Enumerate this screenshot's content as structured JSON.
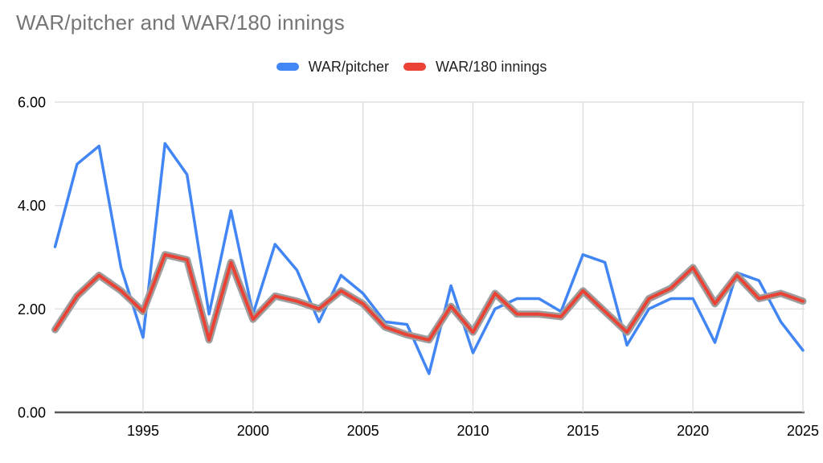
{
  "chart_data": {
    "type": "line",
    "title": "WAR/pitcher and WAR/180 innings",
    "xlabel": "",
    "ylabel": "",
    "x": [
      1991,
      1992,
      1993,
      1994,
      1995,
      1996,
      1997,
      1998,
      1999,
      2000,
      2001,
      2002,
      2003,
      2004,
      2005,
      2006,
      2007,
      2008,
      2009,
      2010,
      2011,
      2012,
      2013,
      2014,
      2015,
      2016,
      2017,
      2018,
      2019,
      2020,
      2021,
      2022,
      2023,
      2024,
      2025
    ],
    "series": [
      {
        "name": "WAR/pitcher",
        "color": "#4285F4",
        "values": [
          3.2,
          4.8,
          5.15,
          2.8,
          1.45,
          5.2,
          4.6,
          1.9,
          3.9,
          1.9,
          3.25,
          2.75,
          1.75,
          2.65,
          2.3,
          1.75,
          1.7,
          0.75,
          2.45,
          1.15,
          2.0,
          2.2,
          2.2,
          1.95,
          3.05,
          2.9,
          1.3,
          2.0,
          2.2,
          2.2,
          1.35,
          2.7,
          2.55,
          1.75,
          1.2
        ]
      },
      {
        "name": "WAR/180 innings",
        "color": "#EA4335",
        "outline_color": "#9E9E9E",
        "values": [
          1.6,
          2.25,
          2.65,
          2.35,
          1.95,
          3.05,
          2.95,
          1.4,
          2.9,
          1.8,
          2.25,
          2.15,
          2.0,
          2.35,
          2.1,
          1.65,
          1.5,
          1.4,
          2.05,
          1.55,
          2.3,
          1.9,
          1.9,
          1.85,
          2.35,
          1.95,
          1.55,
          2.2,
          2.4,
          2.8,
          2.1,
          2.65,
          2.2,
          2.3,
          2.15
        ]
      }
    ],
    "ylim": [
      0,
      6
    ],
    "y_ticks": [
      {
        "value": 0,
        "label": "0.00"
      },
      {
        "value": 2,
        "label": "2.00"
      },
      {
        "value": 4,
        "label": "4.00"
      },
      {
        "value": 6,
        "label": "6.00"
      }
    ],
    "x_ticks": [
      {
        "value": 1995,
        "label": "1995"
      },
      {
        "value": 2000,
        "label": "2000"
      },
      {
        "value": 2005,
        "label": "2005"
      },
      {
        "value": 2010,
        "label": "2010"
      },
      {
        "value": 2015,
        "label": "2015"
      },
      {
        "value": 2020,
        "label": "2020"
      },
      {
        "value": 2025,
        "label": "2025"
      }
    ],
    "grid": true,
    "legend_position": "top",
    "colors": {
      "background": "#FFFFFF",
      "grid": "#D9D9D9",
      "axis": "#595959",
      "axis_text": "#000000",
      "title_text": "#757575",
      "legend_text": "#1F1F1F"
    }
  }
}
